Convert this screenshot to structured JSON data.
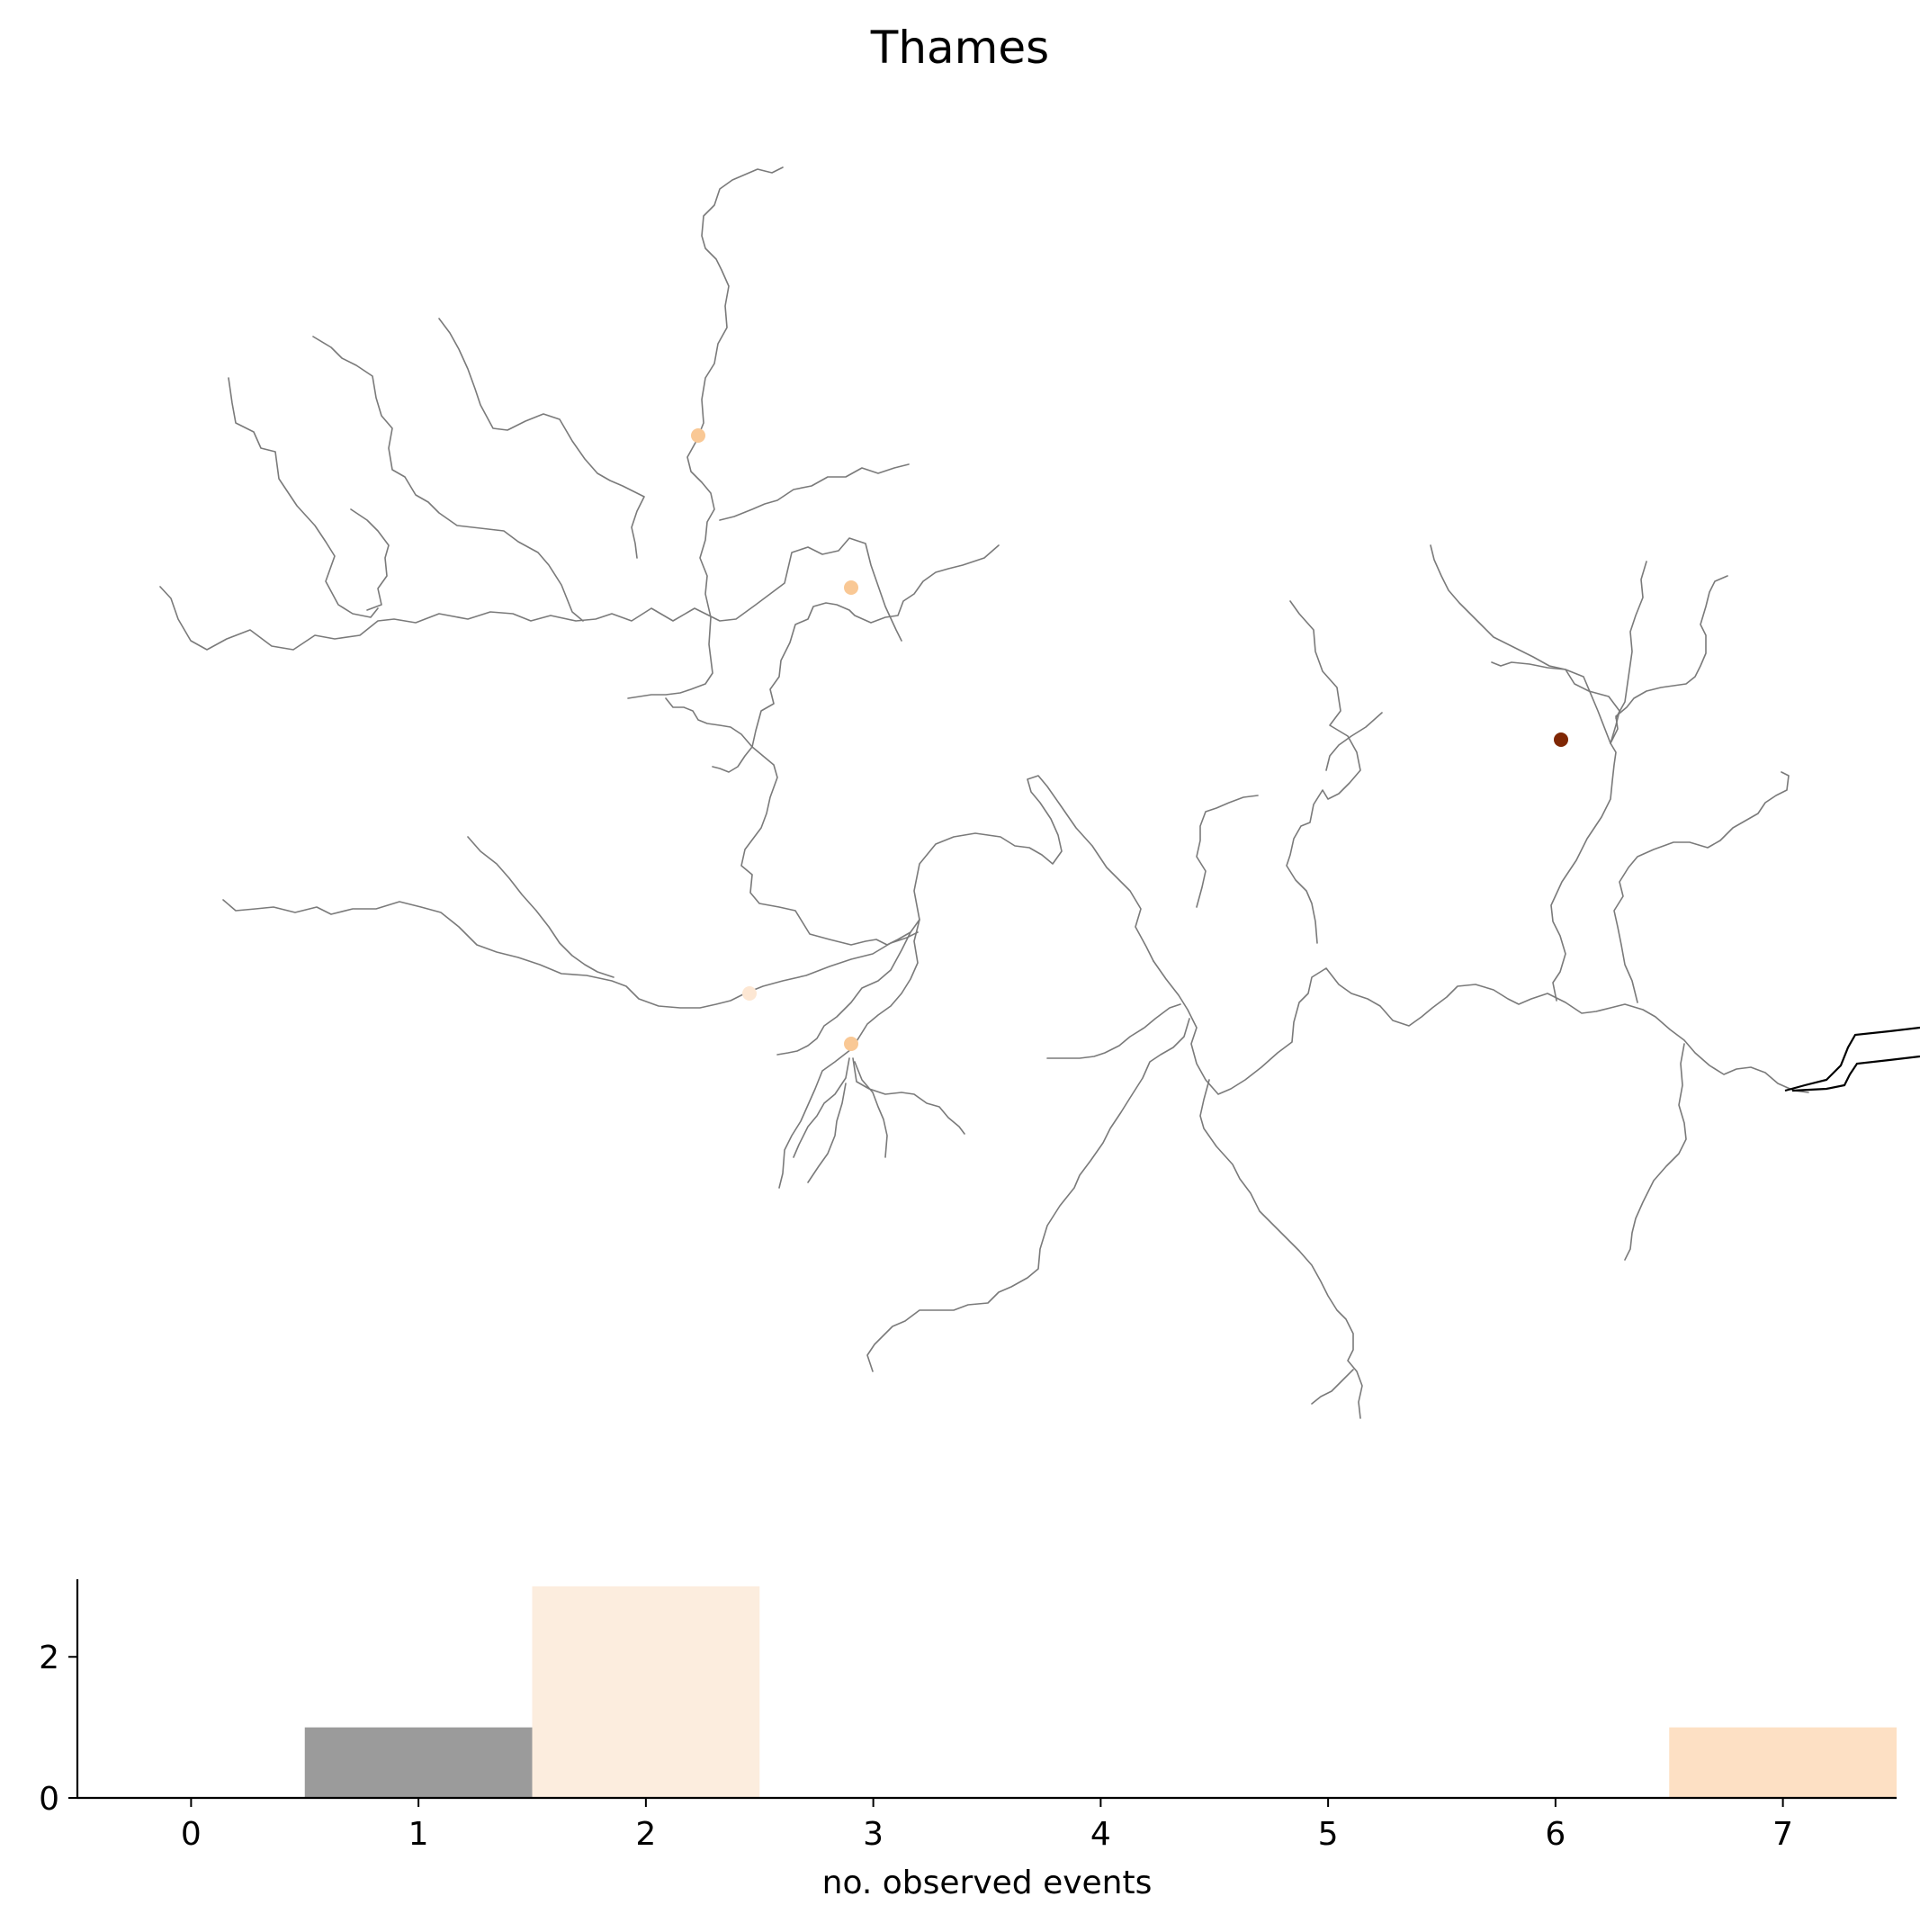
{
  "figure": {
    "title": "Thames"
  },
  "map": {
    "river_color": "#7a7a7a",
    "estuary_color": "#000000",
    "markers": [
      {
        "id": "gauge-1",
        "events": 2,
        "color": "#f9c895"
      },
      {
        "id": "gauge-2",
        "events": 2,
        "color": "#f9c895"
      },
      {
        "id": "gauge-3",
        "events": 1,
        "color": "#fde7d3"
      },
      {
        "id": "gauge-4",
        "events": 2,
        "color": "#f9c895"
      },
      {
        "id": "gauge-5",
        "events": 7,
        "color": "#7f2704"
      }
    ]
  },
  "chart_data": {
    "type": "bar",
    "title": "Thames",
    "xlabel": "no. observed events",
    "ylabel": "",
    "categories": [
      "0",
      "1",
      "2",
      "3",
      "4",
      "5",
      "6",
      "7"
    ],
    "values": [
      0,
      1,
      3,
      0,
      0,
      0,
      0,
      1
    ],
    "bar_colors": [
      "#ffffff",
      "#9b9b9b",
      "#fcedde",
      "#ffffff",
      "#ffffff",
      "#ffffff",
      "#ffffff",
      "#fde0c4"
    ],
    "x_ticks": [
      "0",
      "1",
      "2",
      "3",
      "4",
      "5",
      "6",
      "7"
    ],
    "y_ticks": [
      "0",
      "2"
    ],
    "xlim": [
      -0.5,
      7.5
    ],
    "ylim": [
      0,
      3.1
    ],
    "grid": false
  }
}
